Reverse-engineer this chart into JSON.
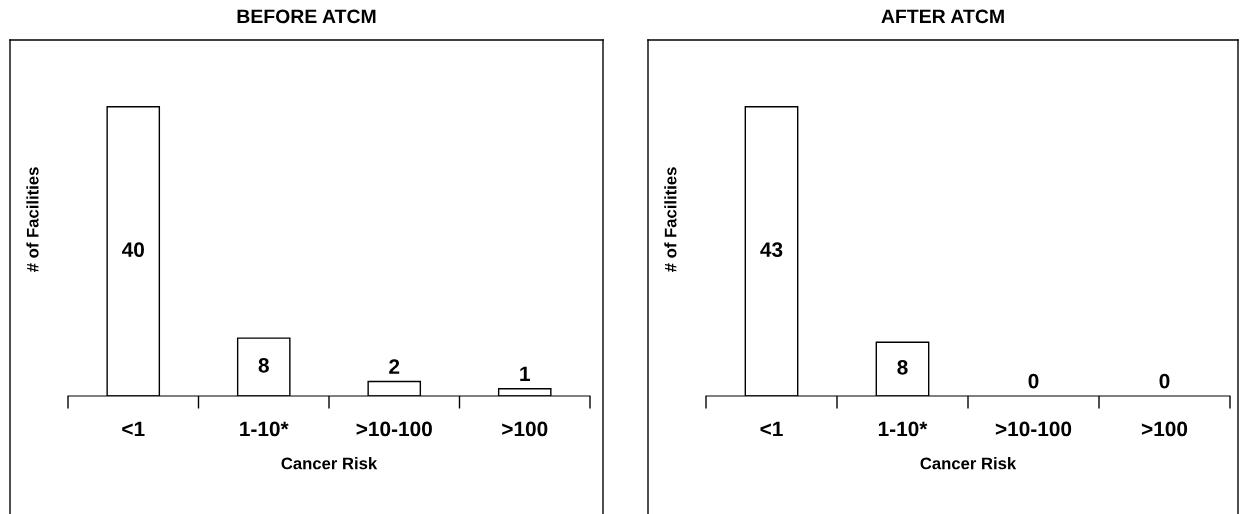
{
  "chart_data": [
    {
      "type": "bar",
      "title": "BEFORE ATCM",
      "xlabel": "Cancer Risk",
      "ylabel": "# of Facilities",
      "categories": [
        "<1",
        "1-10*",
        ">10-100",
        ">100"
      ],
      "values": [
        40,
        8,
        2,
        1
      ],
      "color": "#ffffff",
      "data_labels": true,
      "tick_labels": "x"
    },
    {
      "type": "bar",
      "title": "AFTER ATCM",
      "xlabel": "Cancer Risk",
      "ylabel": "# of Facilities",
      "categories": [
        "<1",
        "1-10*",
        ">10-100",
        ">100"
      ],
      "values": [
        43,
        8,
        0,
        0
      ],
      "color": "#ffffff",
      "data_labels": true,
      "tick_labels": "x"
    }
  ]
}
